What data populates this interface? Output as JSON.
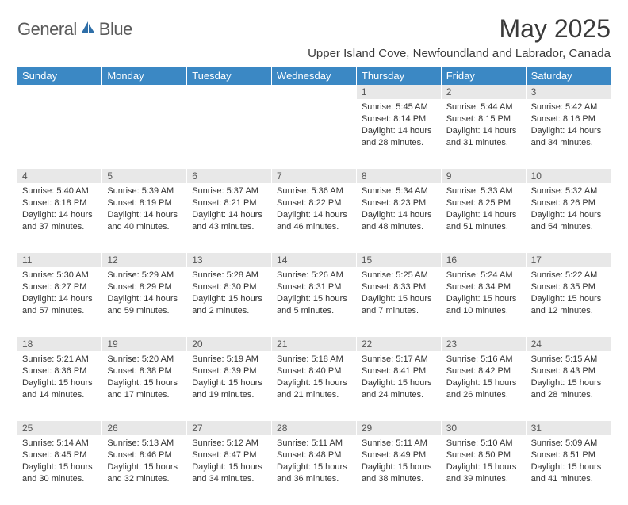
{
  "logo": {
    "word1": "General",
    "word2": "Blue",
    "accent_color": "#3b88c4",
    "text_color": "#5a5a5a"
  },
  "title": "May 2025",
  "subtitle": "Upper Island Cove, Newfoundland and Labrador, Canada",
  "header_bg": "#3b88c4",
  "daynum_bg": "#e8e8e8",
  "weekdays": [
    "Sunday",
    "Monday",
    "Tuesday",
    "Wednesday",
    "Thursday",
    "Friday",
    "Saturday"
  ],
  "weeks": [
    [
      null,
      null,
      null,
      null,
      {
        "n": "1",
        "sr": "5:45 AM",
        "ss": "8:14 PM",
        "dl": "14 hours and 28 minutes."
      },
      {
        "n": "2",
        "sr": "5:44 AM",
        "ss": "8:15 PM",
        "dl": "14 hours and 31 minutes."
      },
      {
        "n": "3",
        "sr": "5:42 AM",
        "ss": "8:16 PM",
        "dl": "14 hours and 34 minutes."
      }
    ],
    [
      {
        "n": "4",
        "sr": "5:40 AM",
        "ss": "8:18 PM",
        "dl": "14 hours and 37 minutes."
      },
      {
        "n": "5",
        "sr": "5:39 AM",
        "ss": "8:19 PM",
        "dl": "14 hours and 40 minutes."
      },
      {
        "n": "6",
        "sr": "5:37 AM",
        "ss": "8:21 PM",
        "dl": "14 hours and 43 minutes."
      },
      {
        "n": "7",
        "sr": "5:36 AM",
        "ss": "8:22 PM",
        "dl": "14 hours and 46 minutes."
      },
      {
        "n": "8",
        "sr": "5:34 AM",
        "ss": "8:23 PM",
        "dl": "14 hours and 48 minutes."
      },
      {
        "n": "9",
        "sr": "5:33 AM",
        "ss": "8:25 PM",
        "dl": "14 hours and 51 minutes."
      },
      {
        "n": "10",
        "sr": "5:32 AM",
        "ss": "8:26 PM",
        "dl": "14 hours and 54 minutes."
      }
    ],
    [
      {
        "n": "11",
        "sr": "5:30 AM",
        "ss": "8:27 PM",
        "dl": "14 hours and 57 minutes."
      },
      {
        "n": "12",
        "sr": "5:29 AM",
        "ss": "8:29 PM",
        "dl": "14 hours and 59 minutes."
      },
      {
        "n": "13",
        "sr": "5:28 AM",
        "ss": "8:30 PM",
        "dl": "15 hours and 2 minutes."
      },
      {
        "n": "14",
        "sr": "5:26 AM",
        "ss": "8:31 PM",
        "dl": "15 hours and 5 minutes."
      },
      {
        "n": "15",
        "sr": "5:25 AM",
        "ss": "8:33 PM",
        "dl": "15 hours and 7 minutes."
      },
      {
        "n": "16",
        "sr": "5:24 AM",
        "ss": "8:34 PM",
        "dl": "15 hours and 10 minutes."
      },
      {
        "n": "17",
        "sr": "5:22 AM",
        "ss": "8:35 PM",
        "dl": "15 hours and 12 minutes."
      }
    ],
    [
      {
        "n": "18",
        "sr": "5:21 AM",
        "ss": "8:36 PM",
        "dl": "15 hours and 14 minutes."
      },
      {
        "n": "19",
        "sr": "5:20 AM",
        "ss": "8:38 PM",
        "dl": "15 hours and 17 minutes."
      },
      {
        "n": "20",
        "sr": "5:19 AM",
        "ss": "8:39 PM",
        "dl": "15 hours and 19 minutes."
      },
      {
        "n": "21",
        "sr": "5:18 AM",
        "ss": "8:40 PM",
        "dl": "15 hours and 21 minutes."
      },
      {
        "n": "22",
        "sr": "5:17 AM",
        "ss": "8:41 PM",
        "dl": "15 hours and 24 minutes."
      },
      {
        "n": "23",
        "sr": "5:16 AM",
        "ss": "8:42 PM",
        "dl": "15 hours and 26 minutes."
      },
      {
        "n": "24",
        "sr": "5:15 AM",
        "ss": "8:43 PM",
        "dl": "15 hours and 28 minutes."
      }
    ],
    [
      {
        "n": "25",
        "sr": "5:14 AM",
        "ss": "8:45 PM",
        "dl": "15 hours and 30 minutes."
      },
      {
        "n": "26",
        "sr": "5:13 AM",
        "ss": "8:46 PM",
        "dl": "15 hours and 32 minutes."
      },
      {
        "n": "27",
        "sr": "5:12 AM",
        "ss": "8:47 PM",
        "dl": "15 hours and 34 minutes."
      },
      {
        "n": "28",
        "sr": "5:11 AM",
        "ss": "8:48 PM",
        "dl": "15 hours and 36 minutes."
      },
      {
        "n": "29",
        "sr": "5:11 AM",
        "ss": "8:49 PM",
        "dl": "15 hours and 38 minutes."
      },
      {
        "n": "30",
        "sr": "5:10 AM",
        "ss": "8:50 PM",
        "dl": "15 hours and 39 minutes."
      },
      {
        "n": "31",
        "sr": "5:09 AM",
        "ss": "8:51 PM",
        "dl": "15 hours and 41 minutes."
      }
    ]
  ],
  "labels": {
    "sunrise": "Sunrise:",
    "sunset": "Sunset:",
    "daylight": "Daylight:"
  }
}
